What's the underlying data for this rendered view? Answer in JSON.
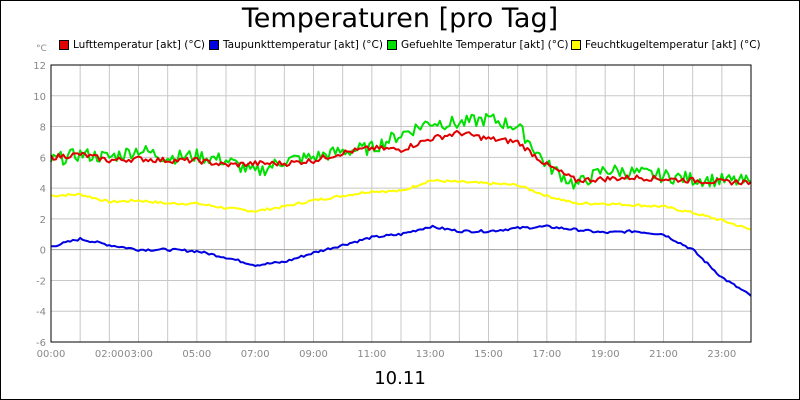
{
  "chart_data": {
    "type": "line",
    "title": "Temperaturen [pro Tag]",
    "ylabel": "°C",
    "xlabel": "10.11",
    "ylim": [
      -6,
      12
    ],
    "yticks": [
      12,
      10,
      8,
      6,
      4,
      2,
      0,
      -2,
      -4,
      -6
    ],
    "xlim": [
      0,
      24
    ],
    "xtick_labels": [
      {
        "h": 0,
        "label": "00:00"
      },
      {
        "h": 2,
        "label": "02:00"
      },
      {
        "h": 3,
        "label": "03:00"
      },
      {
        "h": 5,
        "label": "05:00"
      },
      {
        "h": 7,
        "label": "07:00"
      },
      {
        "h": 9,
        "label": "09:00"
      },
      {
        "h": 11,
        "label": "11:00"
      },
      {
        "h": 13,
        "label": "13:00"
      },
      {
        "h": 15,
        "label": "15:00"
      },
      {
        "h": 17,
        "label": "17:00"
      },
      {
        "h": 19,
        "label": "19:00"
      },
      {
        "h": 21,
        "label": "21:00"
      },
      {
        "h": 23,
        "label": "23:00"
      }
    ],
    "x": [
      0,
      1,
      2,
      3,
      4,
      5,
      6,
      7,
      8,
      9,
      10,
      11,
      12,
      13,
      14,
      15,
      16,
      17,
      18,
      19,
      20,
      21,
      22,
      23,
      24
    ],
    "series": [
      {
        "name": "Lufttemperatur [akt] (°C)",
        "color": "#e00000",
        "values": [
          6.0,
          6.2,
          5.8,
          5.9,
          5.8,
          5.8,
          5.5,
          5.6,
          5.6,
          5.8,
          6.3,
          6.6,
          6.5,
          7.2,
          7.6,
          7.2,
          7.0,
          5.5,
          4.5,
          4.6,
          4.7,
          4.6,
          4.5,
          4.4,
          4.4
        ]
      },
      {
        "name": "Taupunkttemperatur [akt] (°C)",
        "color": "#0000e0",
        "values": [
          0.2,
          0.7,
          0.3,
          0.0,
          0.0,
          -0.1,
          -0.5,
          -1.0,
          -0.8,
          -0.2,
          0.3,
          0.8,
          1.0,
          1.5,
          1.2,
          1.2,
          1.4,
          1.5,
          1.3,
          1.1,
          1.2,
          1.0,
          0.0,
          -1.8,
          -3.0
        ]
      },
      {
        "name": "Gefuehlte Temperatur [akt] (°C)",
        "color": "#00e000",
        "values": [
          5.8,
          6.2,
          6.0,
          6.5,
          6.0,
          6.1,
          5.8,
          5.0,
          5.8,
          6.0,
          6.4,
          6.6,
          7.5,
          8.3,
          8.2,
          8.5,
          8.0,
          5.5,
          4.2,
          5.2,
          5.0,
          4.8,
          4.6,
          4.5,
          4.4
        ]
      },
      {
        "name": "Feuchtkugeltemperatur [akt] (°C)",
        "color": "#ffff00",
        "values": [
          3.5,
          3.6,
          3.1,
          3.2,
          3.0,
          3.0,
          2.7,
          2.5,
          2.8,
          3.2,
          3.5,
          3.8,
          3.8,
          4.5,
          4.4,
          4.3,
          4.2,
          3.5,
          3.0,
          3.0,
          2.9,
          2.8,
          2.4,
          1.9,
          1.3
        ]
      }
    ]
  }
}
